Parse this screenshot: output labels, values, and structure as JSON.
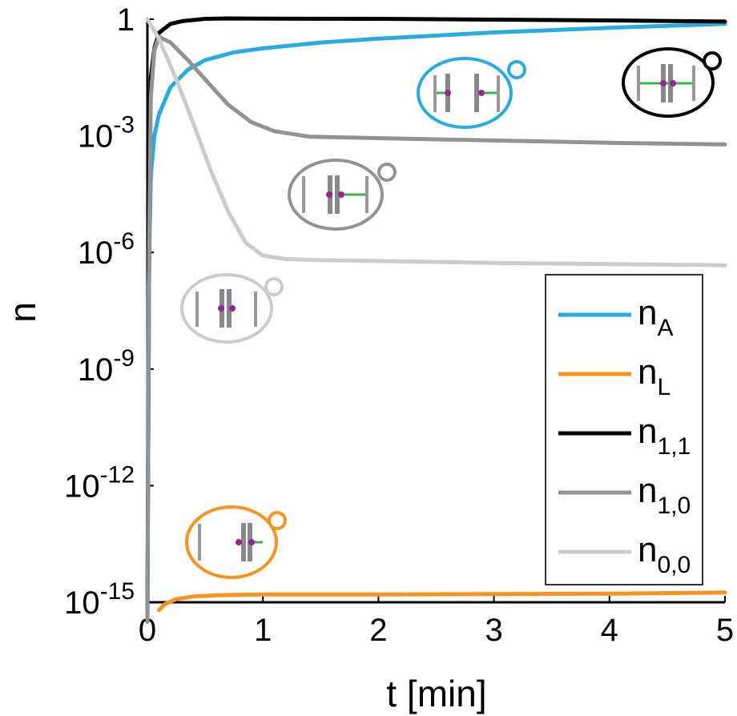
{
  "chart_data": {
    "type": "line",
    "title": "",
    "xlabel": "t [min]",
    "ylabel": "n",
    "xlim": [
      0,
      5
    ],
    "ylim_log10": [
      -15,
      0
    ],
    "yscale": "log",
    "grid": false,
    "legend_position": "bottom-right",
    "x_ticks": [
      0,
      1,
      2,
      3,
      4,
      5
    ],
    "y_ticks": [
      {
        "exp": 0,
        "base": "1",
        "sup": ""
      },
      {
        "exp": -3,
        "base": "10",
        "sup": "-3"
      },
      {
        "exp": -6,
        "base": "10",
        "sup": "-6"
      },
      {
        "exp": -9,
        "base": "10",
        "sup": "-9"
      },
      {
        "exp": -12,
        "base": "10",
        "sup": "-12"
      },
      {
        "exp": -15,
        "base": "10",
        "sup": "-15"
      }
    ],
    "series": [
      {
        "name_base": "n",
        "name_sub": "A",
        "color": "#29abe2",
        "points": [
          [
            0,
            -15.5
          ],
          [
            0.01,
            -7
          ],
          [
            0.03,
            -4
          ],
          [
            0.06,
            -3
          ],
          [
            0.1,
            -2.45
          ],
          [
            0.2,
            -1.75
          ],
          [
            0.35,
            -1.3
          ],
          [
            0.5,
            -1.05
          ],
          [
            0.75,
            -0.85
          ],
          [
            1,
            -0.75
          ],
          [
            1.5,
            -0.6
          ],
          [
            2,
            -0.5
          ],
          [
            2.5,
            -0.42
          ],
          [
            3,
            -0.34
          ],
          [
            3.5,
            -0.28
          ],
          [
            4,
            -0.22
          ],
          [
            4.5,
            -0.17
          ],
          [
            5,
            -0.12
          ]
        ]
      },
      {
        "name_base": "n",
        "name_sub": "L",
        "color": "#f7931e",
        "points": [
          [
            0.1,
            -15.2
          ],
          [
            0.15,
            -15.05
          ],
          [
            0.25,
            -14.92
          ],
          [
            0.4,
            -14.85
          ],
          [
            0.6,
            -14.82
          ],
          [
            1,
            -14.8
          ],
          [
            2,
            -14.8
          ],
          [
            3,
            -14.79
          ],
          [
            4,
            -14.78
          ],
          [
            5,
            -14.75
          ]
        ]
      },
      {
        "name_base": "n",
        "name_sub": "1,1",
        "color": "#000000",
        "points": [
          [
            0,
            -15.5
          ],
          [
            0.015,
            -6
          ],
          [
            0.03,
            -1.5
          ],
          [
            0.06,
            -0.75
          ],
          [
            0.1,
            -0.35
          ],
          [
            0.2,
            -0.12
          ],
          [
            0.3,
            -0.05
          ],
          [
            0.5,
            0.01
          ],
          [
            0.7,
            0.02
          ],
          [
            1,
            0.015
          ],
          [
            2,
            0.01
          ],
          [
            3,
            -0.01
          ],
          [
            4,
            -0.03
          ],
          [
            5,
            -0.06
          ]
        ]
      },
      {
        "name_base": "n",
        "name_sub": "1,0",
        "color": "#939393",
        "points": [
          [
            0,
            -15.5
          ],
          [
            0.015,
            -6
          ],
          [
            0.03,
            -2
          ],
          [
            0.06,
            -0.8
          ],
          [
            0.1,
            -0.45
          ],
          [
            0.2,
            -0.6
          ],
          [
            0.35,
            -1.05
          ],
          [
            0.5,
            -1.55
          ],
          [
            0.7,
            -2.2
          ],
          [
            0.9,
            -2.65
          ],
          [
            1.1,
            -2.88
          ],
          [
            1.4,
            -3.02
          ],
          [
            2,
            -3.06
          ],
          [
            3,
            -3.12
          ],
          [
            4,
            -3.18
          ],
          [
            5,
            -3.22
          ]
        ]
      },
      {
        "name_base": "n",
        "name_sub": "0,0",
        "color": "#cccccc",
        "points": [
          [
            0,
            0
          ],
          [
            0.1,
            -0.5
          ],
          [
            0.25,
            -1.55
          ],
          [
            0.4,
            -2.7
          ],
          [
            0.55,
            -3.9
          ],
          [
            0.7,
            -4.95
          ],
          [
            0.85,
            -5.75
          ],
          [
            1,
            -6.08
          ],
          [
            1.2,
            -6.17
          ],
          [
            1.5,
            -6.2
          ],
          [
            2,
            -6.22
          ],
          [
            3,
            -6.27
          ],
          [
            4,
            -6.3
          ],
          [
            5,
            -6.33
          ]
        ]
      }
    ]
  }
}
